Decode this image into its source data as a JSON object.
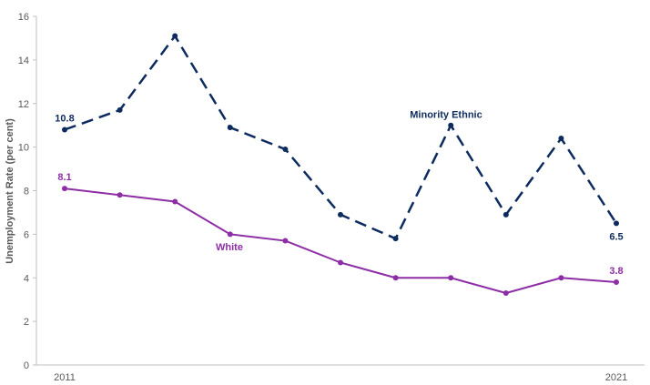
{
  "chart_data": {
    "type": "line",
    "title": "",
    "xlabel": "",
    "ylabel": "Unemployment Rate (per cent)",
    "ylim": [
      0,
      16
    ],
    "yticks": [
      0,
      2,
      4,
      6,
      8,
      10,
      12,
      14,
      16
    ],
    "x": [
      2011,
      2012,
      2013,
      2014,
      2015,
      2016,
      2017,
      2018,
      2019,
      2020,
      2021
    ],
    "x_tick_labels": [
      "2011",
      "",
      "",
      "",
      "",
      "",
      "",
      "",
      "",
      "",
      "2021"
    ],
    "grid": false,
    "legend": "none",
    "series": [
      {
        "name": "Minority Ethnic",
        "color": "#0d2b5e",
        "line_style": "dashed",
        "values": [
          10.8,
          11.7,
          15.1,
          10.9,
          9.9,
          6.9,
          5.8,
          11.0,
          6.9,
          10.4,
          6.5
        ],
        "start_label": "10.8",
        "end_label": "6.5"
      },
      {
        "name": "White",
        "color": "#8e2ea6",
        "line_style": "solid",
        "values": [
          8.1,
          7.8,
          7.5,
          6.0,
          5.7,
          4.7,
          4.0,
          4.0,
          3.3,
          4.0,
          3.8
        ],
        "start_label": "8.1",
        "end_label": "3.8"
      }
    ]
  }
}
